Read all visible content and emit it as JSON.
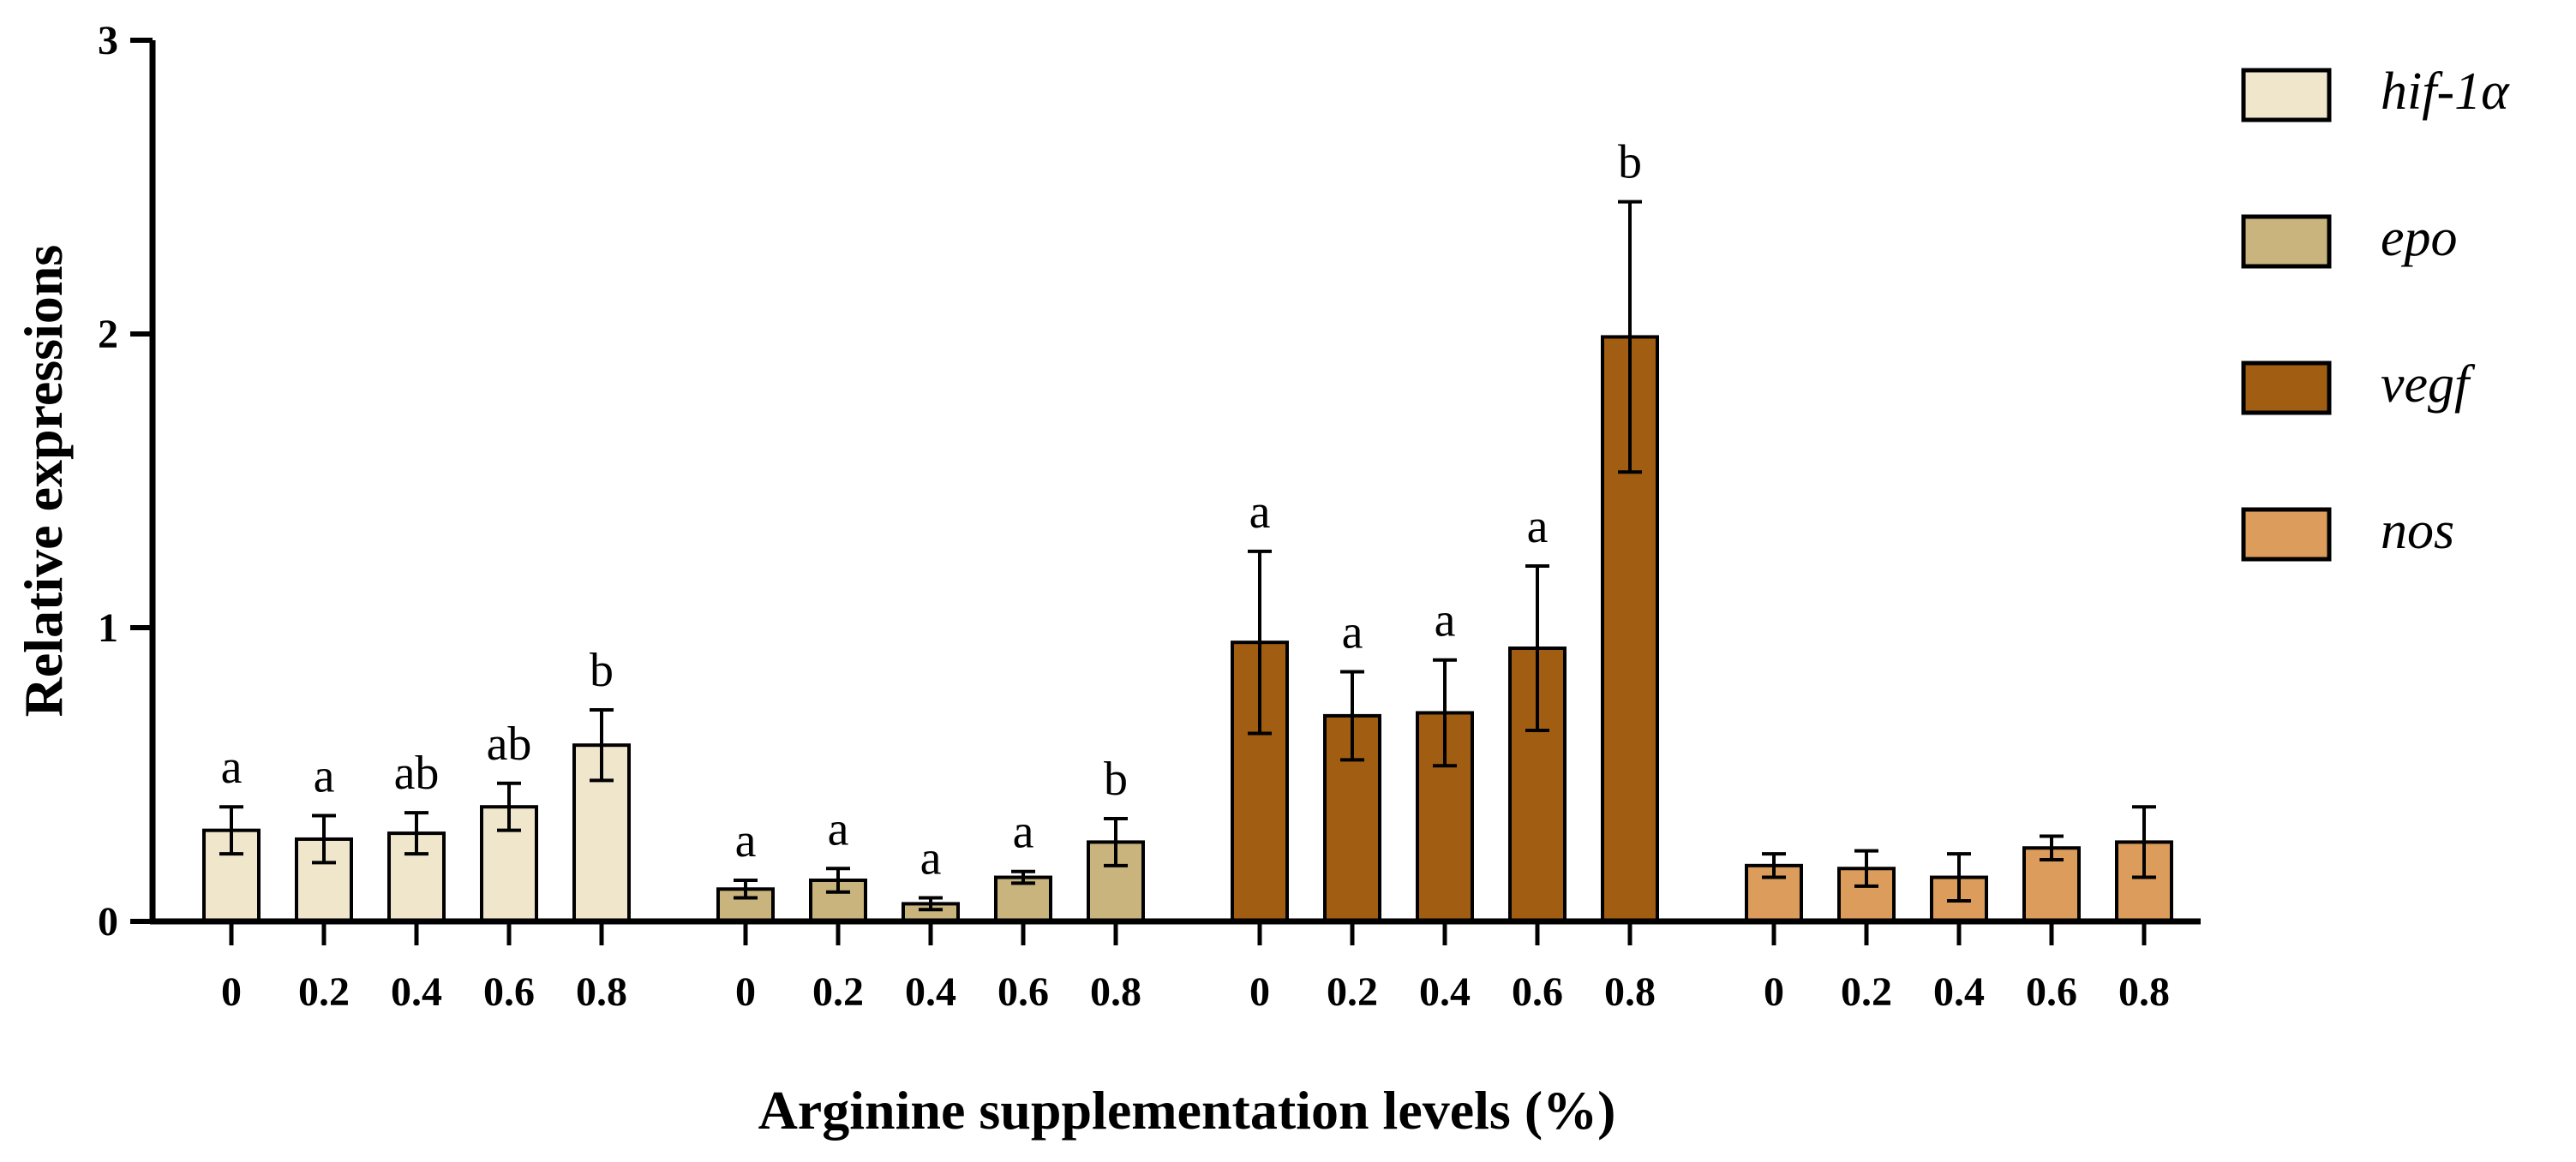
{
  "chart_data": {
    "type": "bar",
    "xlabel": "Arginine supplementation levels (%)",
    "ylabel": "Relative expressions",
    "ylim": [
      0,
      3
    ],
    "yticks": [
      "0",
      "1",
      "2",
      "3"
    ],
    "categories": [
      "0",
      "0.2",
      "0.4",
      "0.6",
      "0.8"
    ],
    "legend_position": "top-right",
    "series": [
      {
        "name": "hif-1α",
        "color": "#efe6cb",
        "values": [
          0.31,
          0.28,
          0.3,
          0.39,
          0.6
        ],
        "errors": [
          0.08,
          0.08,
          0.07,
          0.08,
          0.12
        ],
        "labels": [
          "a",
          "a",
          "ab",
          "ab",
          "b"
        ]
      },
      {
        "name": "epo",
        "color": "#c8b47c",
        "values": [
          0.11,
          0.14,
          0.06,
          0.15,
          0.27
        ],
        "errors": [
          0.03,
          0.04,
          0.02,
          0.02,
          0.08
        ],
        "labels": [
          "a",
          "a",
          "a",
          "a",
          "b"
        ]
      },
      {
        "name": "vegf",
        "color": "#a15d12",
        "values": [
          0.95,
          0.7,
          0.71,
          0.93,
          1.99
        ],
        "errors": [
          0.31,
          0.15,
          0.18,
          0.28,
          0.46
        ],
        "labels": [
          "a",
          "a",
          "a",
          "a",
          "b"
        ]
      },
      {
        "name": "nos",
        "color": "#dc9c5b",
        "values": [
          0.19,
          0.18,
          0.15,
          0.25,
          0.27
        ],
        "errors": [
          0.04,
          0.06,
          0.08,
          0.04,
          0.12
        ],
        "labels": [
          "",
          "",
          "",
          "",
          ""
        ]
      }
    ]
  }
}
